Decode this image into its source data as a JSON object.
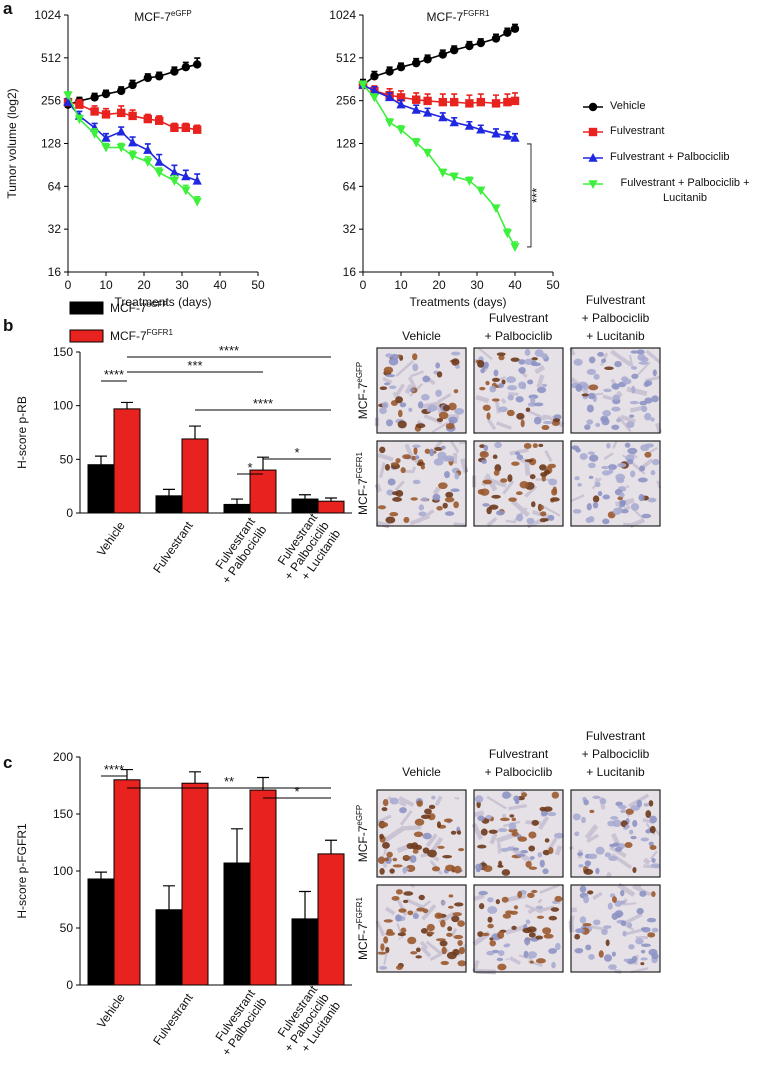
{
  "panel_labels": [
    "a",
    "b",
    "c"
  ],
  "chart_data": [
    {
      "type": "line",
      "title": "MCF-7",
      "title_superscript": "eGFP",
      "xlabel": "Treatments (days)",
      "ylabel": "Tumor volume (log2)",
      "log_base": 2,
      "xlim": [
        0,
        50
      ],
      "xticks": [
        0,
        10,
        20,
        30,
        40,
        50
      ],
      "ylim": [
        16,
        1024
      ],
      "yticks": [
        16,
        32,
        64,
        128,
        256,
        512,
        1024
      ],
      "x": [
        0,
        3,
        7,
        10,
        14,
        17,
        21,
        24,
        28,
        31,
        34
      ],
      "series": [
        {
          "color": "#000000",
          "marker": "circle",
          "values": [
            240,
            255,
            270,
            285,
            300,
            330,
            370,
            380,
            410,
            440,
            460
          ],
          "errors": [
            15,
            15,
            18,
            18,
            20,
            25,
            25,
            25,
            30,
            35,
            50
          ]
        },
        {
          "color": "#e8231f",
          "marker": "square",
          "values": [
            250,
            240,
            215,
            205,
            210,
            200,
            190,
            185,
            165,
            165,
            160
          ],
          "errors": [
            15,
            20,
            20,
            20,
            25,
            20,
            15,
            15,
            12,
            12,
            12
          ]
        },
        {
          "color": "#1f28e0",
          "marker": "triangle-up",
          "values": [
            250,
            200,
            165,
            140,
            155,
            130,
            115,
            95,
            80,
            75,
            70
          ],
          "errors": [
            15,
            15,
            12,
            10,
            12,
            12,
            12,
            12,
            10,
            8,
            8
          ]
        },
        {
          "color": "#3cf03c",
          "marker": "triangle-down",
          "values": [
            280,
            190,
            150,
            120,
            120,
            105,
            95,
            80,
            70,
            60,
            50
          ],
          "errors": [
            15,
            12,
            12,
            8,
            8,
            8,
            8,
            6,
            6,
            5,
            4
          ]
        }
      ]
    },
    {
      "type": "line",
      "title": "MCF-7",
      "title_superscript": "FGFR1",
      "xlabel": "Treatments (days)",
      "log_base": 2,
      "xlim": [
        0,
        50
      ],
      "xticks": [
        0,
        10,
        20,
        30,
        40,
        50
      ],
      "ylim": [
        16,
        1024
      ],
      "yticks": [
        16,
        32,
        64,
        128,
        256,
        512,
        1024
      ],
      "x": [
        0,
        3,
        7,
        10,
        14,
        17,
        21,
        24,
        28,
        31,
        35,
        38,
        40
      ],
      "legend": "right",
      "annotations": [
        {
          "text": "***"
        }
      ],
      "series": [
        {
          "name": "Vehicle",
          "color": "#000000",
          "marker": "circle",
          "values": [
            330,
            380,
            410,
            440,
            470,
            500,
            540,
            580,
            620,
            650,
            700,
            770,
            820
          ],
          "errors": [
            30,
            30,
            30,
            30,
            35,
            35,
            40,
            40,
            45,
            45,
            50,
            55,
            60
          ]
        },
        {
          "name": "Fulvestrant",
          "color": "#e8231f",
          "marker": "square",
          "values": [
            330,
            300,
            280,
            270,
            260,
            255,
            250,
            250,
            245,
            250,
            245,
            250,
            255
          ],
          "errors": [
            20,
            25,
            30,
            30,
            30,
            30,
            35,
            35,
            35,
            35,
            35,
            35,
            35
          ]
        },
        {
          "name": "Fulvestrant + Palbociclib",
          "color": "#1f28e0",
          "marker": "triangle-up",
          "values": [
            330,
            300,
            270,
            240,
            220,
            210,
            195,
            180,
            170,
            160,
            150,
            145,
            140
          ],
          "errors": [
            20,
            20,
            20,
            18,
            18,
            16,
            15,
            14,
            12,
            12,
            12,
            10,
            10
          ]
        },
        {
          "name": "Fulvestrant + Palbociclib + Lucitanib",
          "color": "#3cf03c",
          "marker": "triangle-down",
          "values": [
            330,
            270,
            180,
            160,
            130,
            110,
            80,
            75,
            70,
            60,
            45,
            30,
            24
          ],
          "errors": [
            20,
            15,
            10,
            10,
            8,
            6,
            4,
            4,
            4,
            3,
            2,
            2,
            2
          ]
        }
      ]
    },
    {
      "type": "bar",
      "ylabel": "H-score p-RB",
      "ylim": [
        0,
        150
      ],
      "yticks": [
        0,
        50,
        100,
        150
      ],
      "categories": [
        [
          "Vehicle"
        ],
        [
          "Fulvestrant"
        ],
        [
          "Fulvestrant",
          "+ Palbociclib"
        ],
        [
          "Fulvestrant",
          "+ Palbociclib",
          "+ Lucitanib"
        ]
      ],
      "legend": "top-left",
      "annotations": [
        {
          "text": "****"
        },
        {
          "text": "***"
        },
        {
          "text": "****"
        },
        {
          "text": "****"
        },
        {
          "text": "*"
        },
        {
          "text": "*"
        }
      ],
      "series": [
        {
          "name": "MCF-7",
          "name_superscript": "eGFP",
          "color": "#000000",
          "values": [
            45,
            16,
            8,
            13
          ],
          "errors": [
            8,
            6,
            5,
            4
          ]
        },
        {
          "name": "MCF-7",
          "name_superscript": "FGFR1",
          "color": "#e8231f",
          "values": [
            97,
            69,
            40,
            11
          ],
          "errors": [
            6,
            12,
            12,
            3
          ]
        }
      ]
    },
    {
      "type": "bar",
      "ylabel": "H-score p-FGFR1",
      "ylim": [
        0,
        200
      ],
      "yticks": [
        0,
        50,
        100,
        150,
        200
      ],
      "categories": [
        [
          "Vehicle"
        ],
        [
          "Fulvestrant"
        ],
        [
          "Fulvestrant",
          "+ Palbociclib"
        ],
        [
          "Fulvestrant",
          "+ Palbociclib",
          "+ Lucitanib"
        ]
      ],
      "annotations": [
        {
          "text": "****"
        },
        {
          "text": "**"
        },
        {
          "text": "*"
        }
      ],
      "series": [
        {
          "color": "#000000",
          "values": [
            93,
            66,
            107,
            58
          ],
          "errors": [
            6,
            21,
            30,
            24
          ]
        },
        {
          "color": "#e8231f",
          "values": [
            180,
            177,
            171,
            115
          ],
          "errors": [
            9,
            10,
            11,
            12
          ]
        }
      ]
    }
  ],
  "ihc": [
    {
      "columns": [
        [
          "Vehicle"
        ],
        [
          "Fulvestrant",
          "+ Palbociclib"
        ],
        [
          "Fulvestrant",
          "+ Palbociclib",
          "+ Lucitanib"
        ]
      ],
      "rows": [
        {
          "name": "MCF-7",
          "superscript": "eGFP"
        },
        {
          "name": "MCF-7",
          "superscript": "FGFR1"
        }
      ]
    },
    {
      "columns": [
        [
          "Vehicle"
        ],
        [
          "Fulvestrant",
          "+ Palbociclib"
        ],
        [
          "Fulvestrant",
          "+ Palbociclib",
          "+ Lucitanib"
        ]
      ],
      "rows": [
        {
          "name": "MCF-7",
          "superscript": "eGFP"
        },
        {
          "name": "MCF-7",
          "superscript": "FGFR1"
        }
      ]
    }
  ]
}
